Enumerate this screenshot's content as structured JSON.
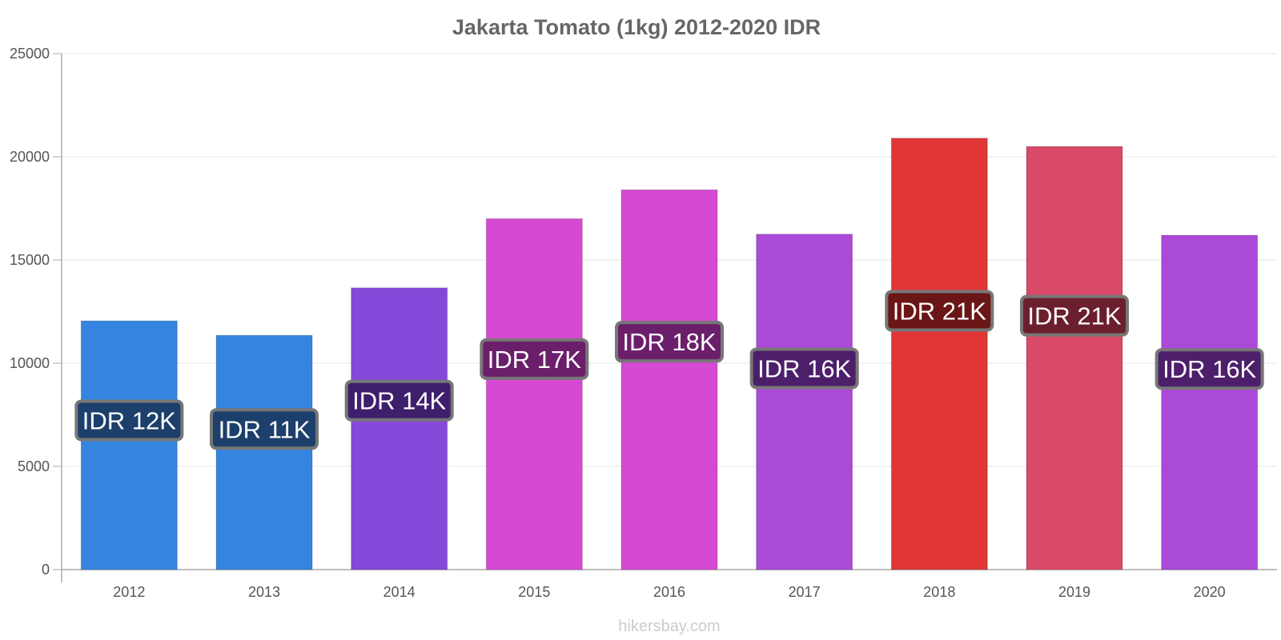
{
  "chart_data": {
    "type": "bar",
    "title": "Jakarta Tomato (1kg) 2012-2020 IDR",
    "categories": [
      "2012",
      "2013",
      "2014",
      "2015",
      "2016",
      "2017",
      "2018",
      "2019",
      "2020"
    ],
    "values": [
      12050,
      11350,
      13650,
      17000,
      18400,
      16250,
      20900,
      20500,
      16200
    ],
    "value_labels": [
      "IDR 12K",
      "IDR 11K",
      "IDR 14K",
      "IDR 17K",
      "IDR 18K",
      "IDR 16K",
      "IDR 21K",
      "IDR 21K",
      "IDR 16K"
    ],
    "bar_colors": [
      "#3584e0",
      "#3584e0",
      "#8549d9",
      "#d649d3",
      "#d649d3",
      "#ab49d8",
      "#e03636",
      "#d94968",
      "#ab49d8"
    ],
    "label_bg_colors": [
      "#1d3f6b",
      "#1d3f6b",
      "#3e1f6b",
      "#6b1f6b",
      "#6b1f6b",
      "#4d1f6b",
      "#6b1616",
      "#6b1f2d",
      "#4d1f6b"
    ],
    "yticks": [
      "0",
      "5000",
      "10000",
      "15000",
      "20000",
      "25000"
    ],
    "ylim": [
      0,
      25000
    ],
    "xlabel": "",
    "ylabel": "",
    "grid": true,
    "legend": "none"
  },
  "footer": {
    "watermark": "hikersbay.com"
  }
}
